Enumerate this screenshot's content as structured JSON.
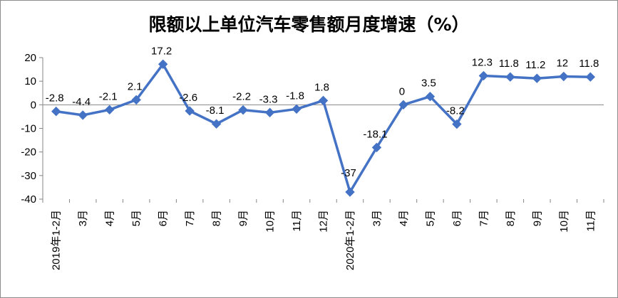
{
  "chart_data": {
    "type": "line",
    "title": "限额以上单位汽车零售额月度增速（%）",
    "categories": [
      "2019年1-2月",
      "3月",
      "4月",
      "5月",
      "6月",
      "7月",
      "8月",
      "9月",
      "10月",
      "11月",
      "12月",
      "2020年1-2月",
      "3月",
      "4月",
      "5月",
      "6月",
      "7月",
      "8月",
      "9月",
      "10月",
      "11月"
    ],
    "series": [
      {
        "values": [
          -2.8,
          -4.4,
          -2.1,
          2.1,
          17.2,
          -2.6,
          -8.1,
          -2.2,
          -3.3,
          -1.8,
          1.8,
          -37,
          -18.1,
          0,
          3.5,
          -8.2,
          12.3,
          11.8,
          11.2,
          12,
          11.8
        ]
      }
    ],
    "data_labels": [
      "-2.8",
      "-4.4",
      "-2.1",
      "2.1",
      "17.2",
      "-2.6",
      "-8.1",
      "-2.2",
      "-3.3",
      "-1.8",
      "1.8",
      "-37",
      "-18.1",
      "0",
      "3.5",
      "-8.2",
      "12.3",
      "11.8",
      "11.2",
      "12",
      "11.8"
    ],
    "yticks": [
      "20",
      "10",
      "0",
      "-10",
      "-20",
      "-30",
      "-40"
    ],
    "ylim": [
      -40,
      20
    ],
    "xlabel": "",
    "ylabel": "",
    "grid": false,
    "legend": "none",
    "line_color": "#4472C4"
  }
}
